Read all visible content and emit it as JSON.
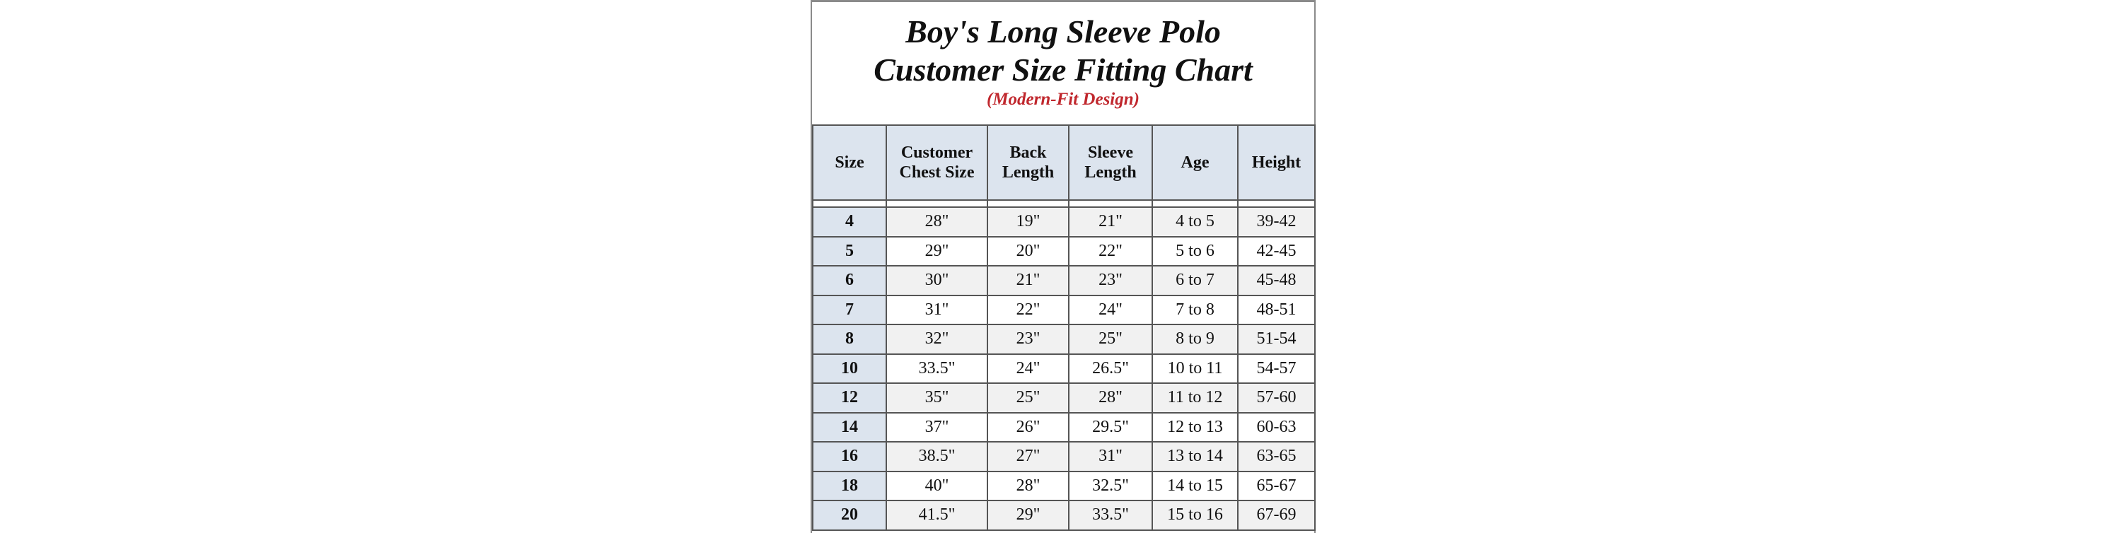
{
  "chart": {
    "title_line1": "Boy's Long Sleeve Polo",
    "title_line2": "Customer Size Fitting Chart",
    "subtitle": "(Modern-Fit Design)",
    "subtitle_color": "#c0272d",
    "header_fill_color": "#dce4ee",
    "columns": [
      {
        "line1": "Size",
        "line2": ""
      },
      {
        "line1": "Customer",
        "line2": "Chest Size"
      },
      {
        "line1": "Back",
        "line2": "Length"
      },
      {
        "line1": "Sleeve",
        "line2": "Length"
      },
      {
        "line1": "Age",
        "line2": ""
      },
      {
        "line1": "Height",
        "line2": ""
      }
    ],
    "rows": [
      [
        "4",
        "28\"",
        "19\"",
        "21\"",
        "4 to 5",
        "39-42"
      ],
      [
        "5",
        "29\"",
        "20\"",
        "22\"",
        "5 to 6",
        "42-45"
      ],
      [
        "6",
        "30\"",
        "21\"",
        "23\"",
        "6 to 7",
        "45-48"
      ],
      [
        "7",
        "31\"",
        "22\"",
        "24\"",
        "7 to 8",
        "48-51"
      ],
      [
        "8",
        "32\"",
        "23\"",
        "25\"",
        "8 to 9",
        "51-54"
      ],
      [
        "10",
        "33.5\"",
        "24\"",
        "26.5\"",
        "10 to 11",
        "54-57"
      ],
      [
        "12",
        "35\"",
        "25\"",
        "28\"",
        "11 to 12",
        "57-60"
      ],
      [
        "14",
        "37\"",
        "26\"",
        "29.5\"",
        "12 to 13",
        "60-63"
      ],
      [
        "16",
        "38.5\"",
        "27\"",
        "31\"",
        "13 to 14",
        "63-65"
      ],
      [
        "18",
        "40\"",
        "28\"",
        "32.5\"",
        "14 to 15",
        "65-67"
      ],
      [
        "20",
        "41.5\"",
        "29\"",
        "33.5\"",
        "15 to 16",
        "67-69"
      ]
    ]
  }
}
